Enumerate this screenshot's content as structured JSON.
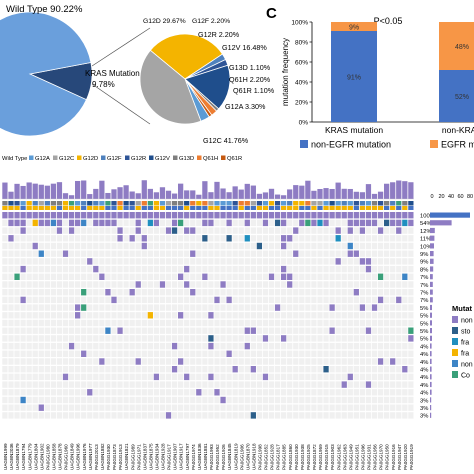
{
  "panel_c_label": "C",
  "chart_data": [
    {
      "type": "pie",
      "id": "kras-pie",
      "slices": [
        {
          "name": "Wild Type",
          "value": 90.22,
          "label": "Wild Type 90.22%",
          "color": "#6a9fdc"
        },
        {
          "name": "KRAS Mutation",
          "value": 9.78,
          "label": "KRAS Mutation\n9.78%",
          "color": "#27487a"
        }
      ]
    },
    {
      "type": "pie",
      "id": "kras-subtype-pie",
      "slices": [
        {
          "name": "G12D",
          "value": 29.67,
          "label": "G12D 29.67%",
          "color": "#f4b400"
        },
        {
          "name": "G12F",
          "value": 2.2,
          "label": "G12F 2.20%",
          "color": "#4f81bd"
        },
        {
          "name": "G12R",
          "value": 2.2,
          "label": "G12R 2.20%",
          "color": "#2f5597"
        },
        {
          "name": "G12V",
          "value": 16.48,
          "label": "G12V 16.48%",
          "color": "#1f4e8c"
        },
        {
          "name": "G13D",
          "value": 1.1,
          "label": "G13D 1.10%",
          "color": "#7f7f7f"
        },
        {
          "name": "Q61H",
          "value": 2.2,
          "label": "Q61H 2.20%",
          "color": "#ed7d31"
        },
        {
          "name": "Q61R",
          "value": 1.1,
          "label": "Q61R 1.10%",
          "color": "#c55a11"
        },
        {
          "name": "G12A",
          "value": 3.3,
          "label": "G12A 3.30%",
          "color": "#5b9bd5"
        },
        {
          "name": "G12C",
          "value": 41.76,
          "label": "G12C 41.76%",
          "color": "#a5a5a5"
        }
      ],
      "legend": {
        "prefix": "Wild Type",
        "entries": [
          {
            "name": "G12A",
            "color": "#5b9bd5"
          },
          {
            "name": "G12C",
            "color": "#a5a5a5"
          },
          {
            "name": "G12D",
            "color": "#f4b400"
          },
          {
            "name": "G12F",
            "color": "#4f81bd"
          },
          {
            "name": "G12R",
            "color": "#2f5597"
          },
          {
            "name": "G12V",
            "color": "#1f4e8c"
          },
          {
            "name": "G13D",
            "color": "#7f7f7f"
          },
          {
            "name": "Q61H",
            "color": "#ed7d31"
          },
          {
            "name": "Q61R",
            "color": "#c55a11"
          }
        ]
      }
    },
    {
      "type": "bar",
      "id": "mutation-frequency-stacked",
      "title": "P<0.05",
      "ylabel": "mutation frequency",
      "ylim": [
        0,
        100
      ],
      "ticks": [
        0,
        20,
        40,
        60,
        80,
        100
      ],
      "tick_labels": [
        "0%",
        "20%",
        "40%",
        "60%",
        "80%",
        "100%"
      ],
      "categories": [
        "KRAS mutation",
        "non-KRAS"
      ],
      "series": [
        {
          "name": "non-EGFR mutation",
          "color": "#4472c4",
          "values": [
            91,
            52
          ],
          "labels": [
            "91%",
            "52%"
          ]
        },
        {
          "name": "EGFR mu",
          "color": "#f79646",
          "values": [
            9,
            48
          ],
          "labels": [
            "9%",
            "48%"
          ]
        }
      ]
    },
    {
      "type": "heatmap",
      "id": "oncoprint",
      "gene_percentages": [
        "100%",
        "54%",
        "12%",
        "11%",
        "10%",
        "9%",
        "9%",
        "8%",
        "7%",
        "7%",
        "7%",
        "7%",
        "5%",
        "5%",
        "5%",
        "5%",
        "5%",
        "4%",
        "4%",
        "4%",
        "4%",
        "4%",
        "4%",
        "4%",
        "3%",
        "3%",
        "3%"
      ],
      "side_axis_ticks": [
        "0",
        "20",
        "40",
        "60",
        "80"
      ],
      "legend": {
        "title": "Mutat",
        "entries": [
          {
            "name": "non",
            "color": "#8e7cc3"
          },
          {
            "name": "sto",
            "color": "#2c5f8a"
          },
          {
            "name": "fra",
            "color": "#1f8fbf"
          },
          {
            "name": "fra",
            "color": "#f4b400"
          },
          {
            "name": "non",
            "color": "#3d85c6"
          },
          {
            "name": "Co",
            "color": "#3aa07a"
          }
        ]
      },
      "sample_ids": [
        "UAGBN1999",
        "UAGBN2036",
        "UAGBN1879",
        "UAGBN1794",
        "UAGBN1779",
        "UAGBN1804",
        "UAGBN1902",
        "PA0GG1980",
        "UAGBN1858",
        "UAGBN1878",
        "PA0GG1960",
        "UAGBN1849",
        "UAGBN1996",
        "UAGBN1976",
        "UAGBN1977",
        "PA0GG2013",
        "UAGBN1882",
        "PA0GG1930",
        "PA0GG1873",
        "PA0GG1913",
        "UAGBN1821",
        "PA0GG1989",
        "PA0GG1971",
        "UAGBN1837",
        "UAGBN1875",
        "UAGBN1934",
        "UAGBN1928",
        "PA0GG1917",
        "UAGBN1907",
        "UAGBN1917",
        "UAGBN1797",
        "PA0GG1974",
        "UAGBN1836",
        "UAGBN1881",
        "PA0GG1993",
        "PA0GG1952",
        "PA0GG1926",
        "UAGBN1845",
        "UAGBN1819",
        "PA0GG1906",
        "UAGBN1870",
        "UAGBN1918",
        "PA0GG1998",
        "PA0GG1852",
        "PA0GG1928",
        "PA0GG1817",
        "PA0GG1885",
        "PA0GG1860",
        "PA0GG1930",
        "PA0GG1938",
        "PA0GG1925",
        "PA0GG1872",
        "PA0GG1959",
        "PA0GG1915",
        "PA0GG1903",
        "PA0GG1962",
        "PA0GG1963",
        "PA0GG1949",
        "PA0GG1951",
        "PA0GG1996",
        "PA0GG1931",
        "PA0GG1956",
        "PA0GG1970",
        "PA0GG1950",
        "PA0GG1916",
        "PA0GG1947",
        "PA0GG1920",
        "PA0GG1919"
      ]
    }
  ]
}
